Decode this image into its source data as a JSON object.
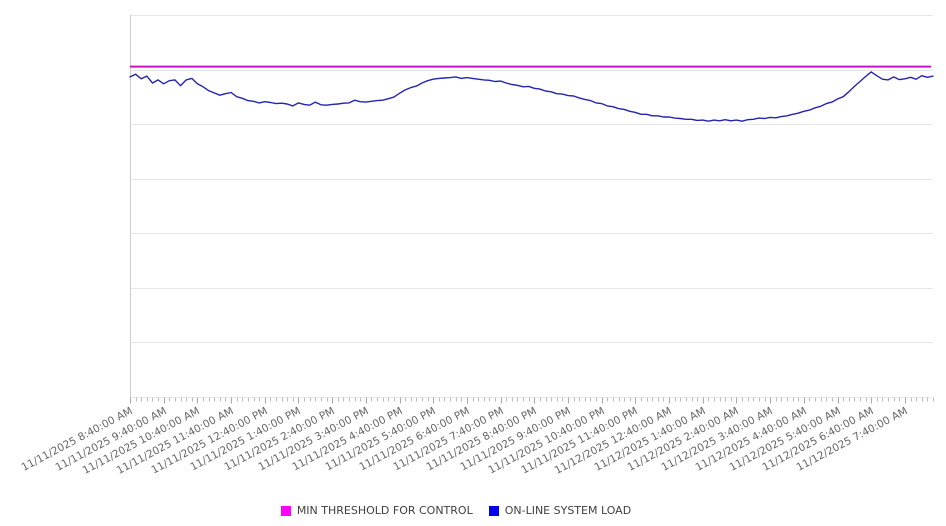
{
  "legend": {
    "position": "bottom",
    "items": [
      {
        "label": "MIN THRESHOLD FOR CONTROL",
        "color": "#ff00ff"
      },
      {
        "label": "ON-LINE SYSTEM LOAD",
        "color": "#0000ee"
      }
    ]
  },
  "chart_data": {
    "type": "line",
    "title": "",
    "xlabel": "",
    "ylabel": "",
    "y_tick_labels_visible": false,
    "ylim": [
      0,
      100
    ],
    "grid": "horizontal",
    "legend_position": "bottom",
    "x_labels": [
      "11/11/2025 8:40:00 AM",
      "11/11/2025 9:40:00 AM",
      "11/11/2025 10:40:00 AM",
      "11/11/2025 11:40:00 AM",
      "11/11/2025 12:40:00 PM",
      "11/11/2025 1:40:00 PM",
      "11/11/2025 2:40:00 PM",
      "11/11/2025 3:40:00 PM",
      "11/11/2025 4:40:00 PM",
      "11/11/2025 5:40:00 PM",
      "11/11/2025 6:40:00 PM",
      "11/11/2025 7:40:00 PM",
      "11/11/2025 8:40:00 PM",
      "11/11/2025 9:40:00 PM",
      "11/11/2025 10:40:00 PM",
      "11/11/2025 11:40:00 PM",
      "11/12/2025 12:40:00 AM",
      "11/12/2025 1:40:00 AM",
      "11/12/2025 2:40:00 AM",
      "11/12/2025 3:40:00 AM",
      "11/12/2025 4:40:00 AM",
      "11/12/2025 5:40:00 AM",
      "11/12/2025 6:40:00 AM",
      "11/12/2025 7:40:00 AM"
    ],
    "minor_ticks_per_label": 6,
    "series": [
      {
        "name": "MIN THRESHOLD FOR CONTROL",
        "type": "constant-threshold",
        "color": "#c613c6",
        "value": 86.5
      },
      {
        "name": "ON-LINE SYSTEM LOAD",
        "type": "line",
        "color": "#2424b2",
        "points_per_hour": 6,
        "values": [
          83.8,
          84.5,
          83.3,
          84.0,
          82.2,
          83.0,
          82.0,
          82.8,
          83.0,
          81.5,
          83.0,
          83.4,
          82.0,
          81.2,
          80.2,
          79.6,
          79.0,
          79.4,
          79.7,
          78.6,
          78.2,
          77.6,
          77.4,
          77.0,
          77.3,
          77.1,
          76.8,
          76.9,
          76.7,
          76.2,
          77.0,
          76.6,
          76.4,
          77.2,
          76.5,
          76.4,
          76.6,
          76.7,
          76.9,
          77.0,
          77.7,
          77.3,
          77.2,
          77.4,
          77.6,
          77.7,
          78.1,
          78.5,
          79.5,
          80.4,
          81.0,
          81.4,
          82.2,
          82.8,
          83.2,
          83.4,
          83.5,
          83.6,
          83.8,
          83.4,
          83.6,
          83.4,
          83.2,
          83.0,
          82.9,
          82.6,
          82.7,
          82.2,
          81.8,
          81.6,
          81.2,
          81.3,
          80.8,
          80.6,
          80.1,
          79.9,
          79.4,
          79.3,
          78.9,
          78.8,
          78.3,
          77.9,
          77.6,
          77.0,
          76.8,
          76.2,
          76.0,
          75.5,
          75.3,
          74.8,
          74.5,
          74.0,
          74.0,
          73.6,
          73.6,
          73.3,
          73.3,
          73.0,
          72.9,
          72.7,
          72.7,
          72.4,
          72.5,
          72.2,
          72.5,
          72.3,
          72.6,
          72.3,
          72.5,
          72.2,
          72.6,
          72.7,
          73.0,
          72.9,
          73.2,
          73.1,
          73.4,
          73.6,
          74.0,
          74.3,
          74.8,
          75.1,
          75.7,
          76.1,
          76.8,
          77.2,
          78.0,
          78.6,
          79.9,
          81.3,
          82.6,
          83.9,
          85.1,
          84.1,
          83.2,
          83.0,
          83.8,
          83.1,
          83.3,
          83.7,
          83.2,
          84.1,
          83.7,
          84.0
        ]
      }
    ]
  },
  "colors": {
    "background": "#ffffff",
    "gridline": "#e7e7e7",
    "axis_line": "#cccccc",
    "tick": "#bbbbbb",
    "axis_label_text": "#656565",
    "legend_text": "#404040"
  }
}
